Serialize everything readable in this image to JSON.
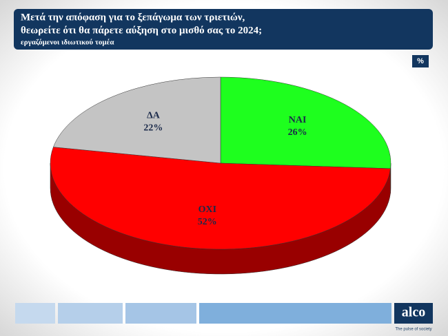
{
  "chart_data": {
    "type": "pie",
    "title": [
      "Μετά την απόφαση για το ξεπάγωμα των τριετιών,",
      "θεωρείτε ότι θα πάρετε αύξηση στο μισθό σας το 2024;"
    ],
    "subtitle": "εργαζόμενοι ιδιωτικού τομέα",
    "unit": "%",
    "categories": [
      "ΝΑΙ",
      "ΟΧΙ",
      "ΔΑ"
    ],
    "values": [
      26,
      52,
      22
    ],
    "value_labels": [
      "26%",
      "52%",
      "22%"
    ],
    "colors": [
      "#1eff1e",
      "#ff0000",
      "#c4c4c4"
    ]
  },
  "logo": {
    "name": "alco",
    "tagline": "The pulse of society"
  }
}
